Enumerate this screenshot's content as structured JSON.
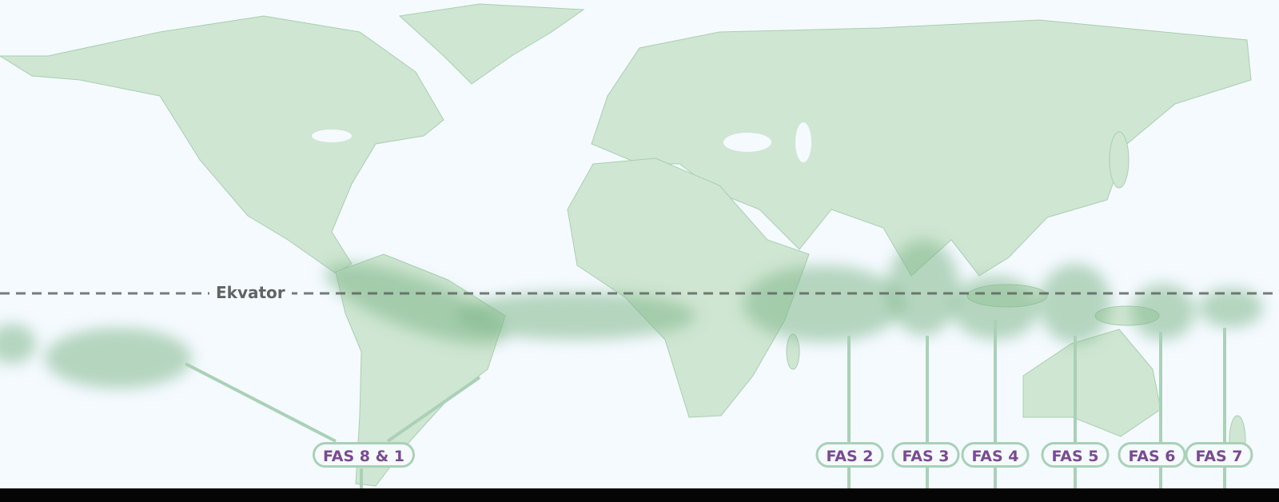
{
  "equator": {
    "label": "Ekvator"
  },
  "phases": [
    {
      "label": "FAS 8 & 1"
    },
    {
      "label": "FAS 2"
    },
    {
      "label": "FAS 3"
    },
    {
      "label": "FAS 4"
    },
    {
      "label": "FAS 5"
    },
    {
      "label": "FAS 6"
    },
    {
      "label": "FAS 7"
    }
  ],
  "colors": {
    "land": "#cfe6d2",
    "convection": "#7fb78b",
    "label_text": "#7a4a93",
    "label_border": "#a9d1b6",
    "equator": "#606462",
    "background": "#f5faff"
  }
}
